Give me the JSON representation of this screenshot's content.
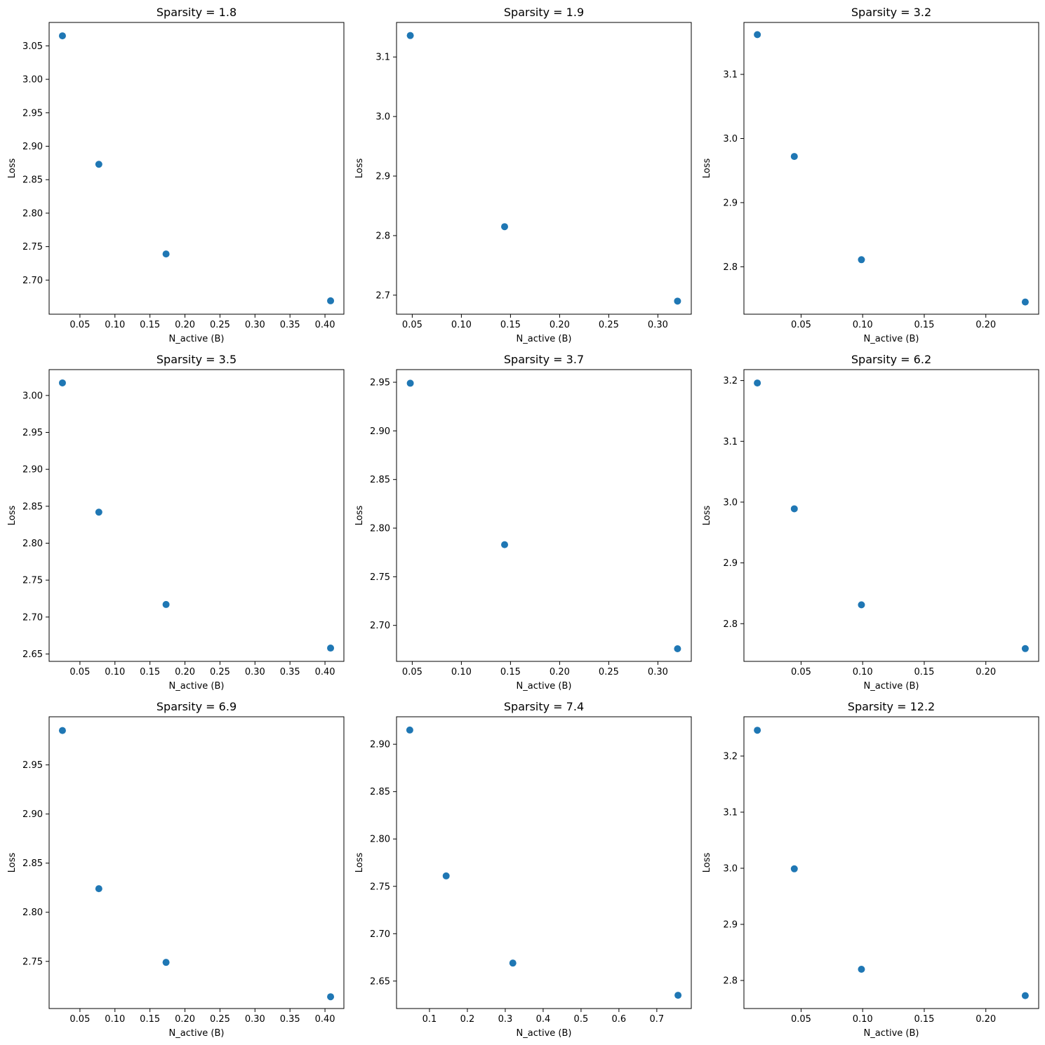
{
  "chart_data": [
    {
      "type": "scatter",
      "title": "Sparsity = 1.8",
      "xlabel": "N_active (B)",
      "ylabel": "Loss",
      "x": [
        0.025,
        0.077,
        0.173,
        0.408
      ],
      "y": [
        3.065,
        2.873,
        2.739,
        2.669
      ],
      "xlim": [
        0.006,
        0.427
      ],
      "ylim": [
        2.649,
        3.085
      ],
      "xticks": [
        0.05,
        0.1,
        0.15,
        0.2,
        0.25,
        0.3,
        0.35,
        0.4
      ],
      "xtick_labels": [
        "0.05",
        "0.10",
        "0.15",
        "0.20",
        "0.25",
        "0.30",
        "0.35",
        "0.40"
      ],
      "yticks": [
        2.7,
        2.75,
        2.8,
        2.85,
        2.9,
        2.95,
        3.0,
        3.05
      ],
      "ytick_labels": [
        "2.70",
        "2.75",
        "2.80",
        "2.85",
        "2.90",
        "2.95",
        "3.00",
        "3.05"
      ],
      "grid": false,
      "color": "#1f77b4"
    },
    {
      "type": "scatter",
      "title": "Sparsity = 1.9",
      "xlabel": "N_active (B)",
      "ylabel": "Loss",
      "x": [
        0.048,
        0.144,
        0.32
      ],
      "y": [
        3.136,
        2.815,
        2.69
      ],
      "xlim": [
        0.034,
        0.334
      ],
      "ylim": [
        2.668,
        3.158
      ],
      "xticks": [
        0.05,
        0.1,
        0.15,
        0.2,
        0.25,
        0.3
      ],
      "xtick_labels": [
        "0.05",
        "0.10",
        "0.15",
        "0.20",
        "0.25",
        "0.30"
      ],
      "yticks": [
        2.7,
        2.8,
        2.9,
        3.0,
        3.1
      ],
      "ytick_labels": [
        "2.7",
        "2.8",
        "2.9",
        "3.0",
        "3.1"
      ],
      "grid": false,
      "color": "#1f77b4"
    },
    {
      "type": "scatter",
      "title": "Sparsity = 3.2",
      "xlabel": "N_active (B)",
      "ylabel": "Loss",
      "x": [
        0.0145,
        0.0445,
        0.099,
        0.232
      ],
      "y": [
        3.162,
        2.972,
        2.811,
        2.745
      ],
      "xlim": [
        0.0036,
        0.2429
      ],
      "ylim": [
        2.726,
        3.181
      ],
      "xticks": [
        0.05,
        0.1,
        0.15,
        0.2
      ],
      "xtick_labels": [
        "0.05",
        "0.10",
        "0.15",
        "0.20"
      ],
      "yticks": [
        2.8,
        2.9,
        3.0,
        3.1
      ],
      "ytick_labels": [
        "2.8",
        "2.9",
        "3.0",
        "3.1"
      ],
      "grid": false,
      "color": "#1f77b4"
    },
    {
      "type": "scatter",
      "title": "Sparsity = 3.5",
      "xlabel": "N_active (B)",
      "ylabel": "Loss",
      "x": [
        0.025,
        0.077,
        0.173,
        0.408
      ],
      "y": [
        3.017,
        2.842,
        2.717,
        2.658
      ],
      "xlim": [
        0.006,
        0.427
      ],
      "ylim": [
        2.64,
        3.035
      ],
      "xticks": [
        0.05,
        0.1,
        0.15,
        0.2,
        0.25,
        0.3,
        0.35,
        0.4
      ],
      "xtick_labels": [
        "0.05",
        "0.10",
        "0.15",
        "0.20",
        "0.25",
        "0.30",
        "0.35",
        "0.40"
      ],
      "yticks": [
        2.65,
        2.7,
        2.75,
        2.8,
        2.85,
        2.9,
        2.95,
        3.0
      ],
      "ytick_labels": [
        "2.65",
        "2.70",
        "2.75",
        "2.80",
        "2.85",
        "2.90",
        "2.95",
        "3.00"
      ],
      "grid": false,
      "color": "#1f77b4"
    },
    {
      "type": "scatter",
      "title": "Sparsity = 3.7",
      "xlabel": "N_active (B)",
      "ylabel": "Loss",
      "x": [
        0.048,
        0.144,
        0.32
      ],
      "y": [
        2.949,
        2.783,
        2.676
      ],
      "xlim": [
        0.034,
        0.334
      ],
      "ylim": [
        2.663,
        2.963
      ],
      "xticks": [
        0.05,
        0.1,
        0.15,
        0.2,
        0.25,
        0.3
      ],
      "xtick_labels": [
        "0.05",
        "0.10",
        "0.15",
        "0.20",
        "0.25",
        "0.30"
      ],
      "yticks": [
        2.7,
        2.75,
        2.8,
        2.85,
        2.9,
        2.95
      ],
      "ytick_labels": [
        "2.70",
        "2.75",
        "2.80",
        "2.85",
        "2.90",
        "2.95"
      ],
      "grid": false,
      "color": "#1f77b4"
    },
    {
      "type": "scatter",
      "title": "Sparsity = 6.2",
      "xlabel": "N_active (B)",
      "ylabel": "Loss",
      "x": [
        0.0145,
        0.0445,
        0.099,
        0.232
      ],
      "y": [
        3.196,
        2.989,
        2.831,
        2.759
      ],
      "xlim": [
        0.0036,
        0.2429
      ],
      "ylim": [
        2.738,
        3.218
      ],
      "xticks": [
        0.05,
        0.1,
        0.15,
        0.2
      ],
      "xtick_labels": [
        "0.05",
        "0.10",
        "0.15",
        "0.20"
      ],
      "yticks": [
        2.8,
        2.9,
        3.0,
        3.1,
        3.2
      ],
      "ytick_labels": [
        "2.8",
        "2.9",
        "3.0",
        "3.1",
        "3.2"
      ],
      "grid": false,
      "color": "#1f77b4"
    },
    {
      "type": "scatter",
      "title": "Sparsity = 6.9",
      "xlabel": "N_active (B)",
      "ylabel": "Loss",
      "x": [
        0.025,
        0.077,
        0.173,
        0.408
      ],
      "y": [
        2.985,
        2.824,
        2.749,
        2.714
      ],
      "xlim": [
        0.006,
        0.427
      ],
      "ylim": [
        2.702,
        2.999
      ],
      "xticks": [
        0.05,
        0.1,
        0.15,
        0.2,
        0.25,
        0.3,
        0.35,
        0.4
      ],
      "xtick_labels": [
        "0.05",
        "0.10",
        "0.15",
        "0.20",
        "0.25",
        "0.30",
        "0.35",
        "0.40"
      ],
      "yticks": [
        2.75,
        2.8,
        2.85,
        2.9,
        2.95
      ],
      "ytick_labels": [
        "2.75",
        "2.80",
        "2.85",
        "2.90",
        "2.95"
      ],
      "grid": false,
      "color": "#1f77b4"
    },
    {
      "type": "scatter",
      "title": "Sparsity = 7.4",
      "xlabel": "N_active (B)",
      "ylabel": "Loss",
      "x": [
        0.048,
        0.144,
        0.32,
        0.756
      ],
      "y": [
        2.915,
        2.761,
        2.669,
        2.635
      ],
      "xlim": [
        0.013,
        0.791
      ],
      "ylim": [
        2.621,
        2.929
      ],
      "xticks": [
        0.1,
        0.2,
        0.3,
        0.4,
        0.5,
        0.6,
        0.7
      ],
      "xtick_labels": [
        "0.1",
        "0.2",
        "0.3",
        "0.4",
        "0.5",
        "0.6",
        "0.7"
      ],
      "yticks": [
        2.65,
        2.7,
        2.75,
        2.8,
        2.85,
        2.9
      ],
      "ytick_labels": [
        "2.65",
        "2.70",
        "2.75",
        "2.80",
        "2.85",
        "2.90"
      ],
      "grid": false,
      "color": "#1f77b4"
    },
    {
      "type": "scatter",
      "title": "Sparsity = 12.2",
      "xlabel": "N_active (B)",
      "ylabel": "Loss",
      "x": [
        0.0145,
        0.0445,
        0.099,
        0.232
      ],
      "y": [
        3.246,
        2.999,
        2.82,
        2.773
      ],
      "xlim": [
        0.0036,
        0.2429
      ],
      "ylim": [
        2.75,
        3.27
      ],
      "xticks": [
        0.05,
        0.1,
        0.15,
        0.2
      ],
      "xtick_labels": [
        "0.05",
        "0.10",
        "0.15",
        "0.20"
      ],
      "yticks": [
        2.8,
        2.9,
        3.0,
        3.1,
        3.2
      ],
      "ytick_labels": [
        "2.8",
        "2.9",
        "3.0",
        "3.1",
        "3.2"
      ],
      "grid": false,
      "color": "#1f77b4"
    }
  ]
}
